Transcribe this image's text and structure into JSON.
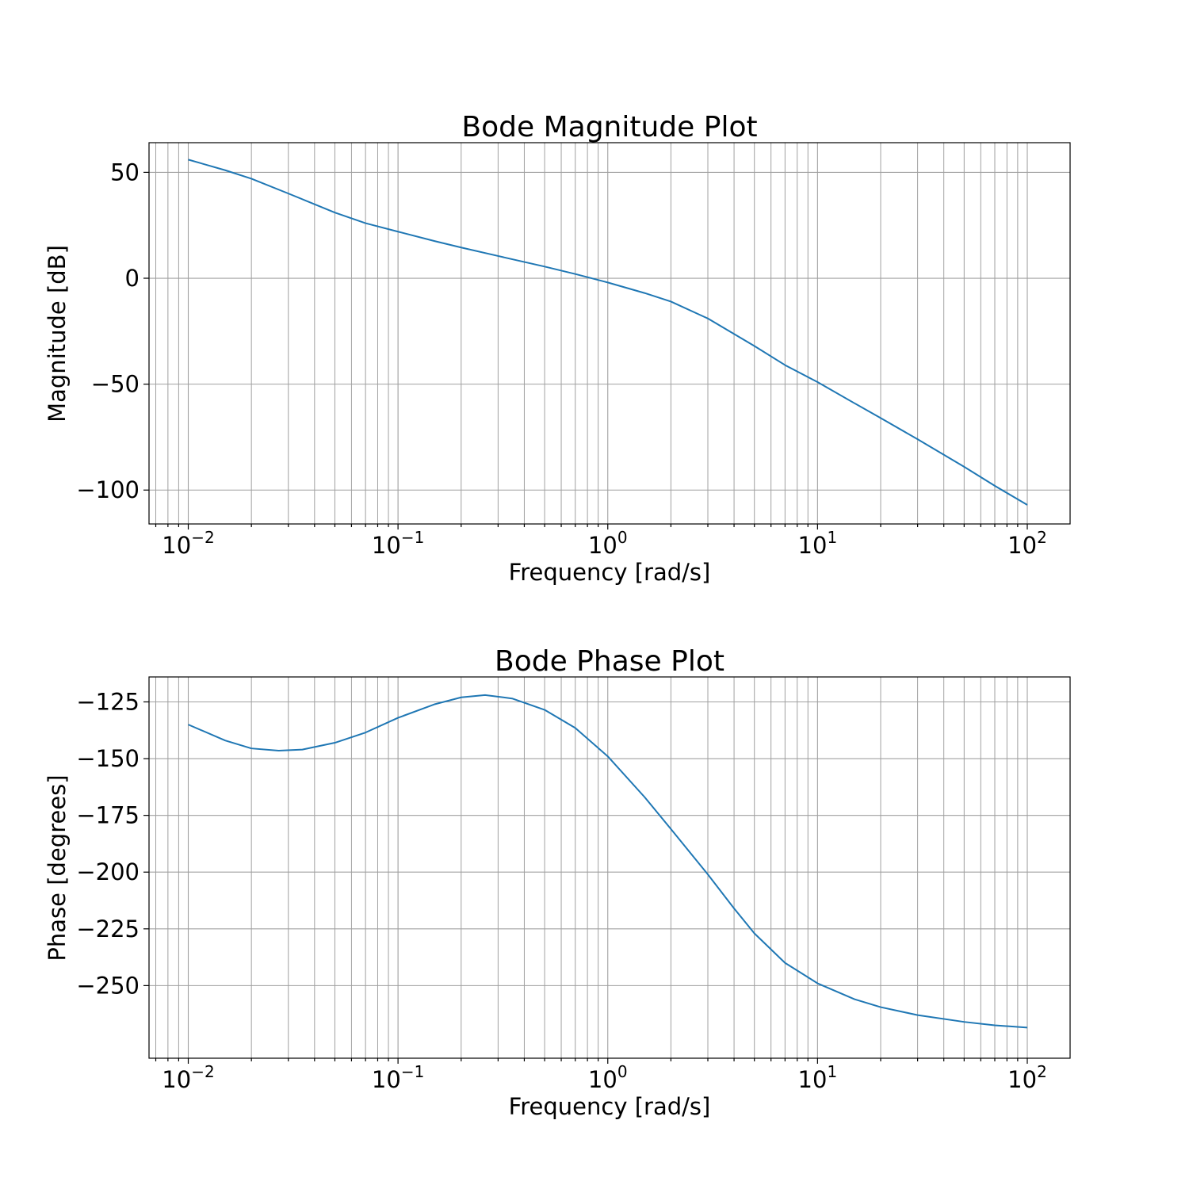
{
  "chart_data": [
    {
      "type": "line",
      "title": "Bode Magnitude Plot",
      "xlabel": "Frequency [rad/s]",
      "ylabel": "Magnitude [dB]",
      "xscale": "log",
      "xlim": [
        0.0065,
        160
      ],
      "ylim": [
        -116,
        64
      ],
      "grid": "both",
      "x_ticks": [
        0.01,
        0.1,
        1,
        10,
        100
      ],
      "x_tick_labels": [
        [
          "10",
          "−2"
        ],
        [
          "10",
          "−1"
        ],
        [
          "10",
          "0"
        ],
        [
          "10",
          "1"
        ],
        [
          "10",
          "2"
        ]
      ],
      "y_ticks": [
        50,
        0,
        -50,
        -100
      ],
      "y_tick_labels": [
        "50",
        "0",
        "−50",
        "−100"
      ],
      "series": [
        {
          "color": "#1f77b4",
          "x": [
            0.01,
            0.015,
            0.02,
            0.03,
            0.05,
            0.07,
            0.1,
            0.15,
            0.2,
            0.3,
            0.5,
            0.7,
            1,
            1.5,
            2,
            3,
            5,
            7,
            10,
            15,
            20,
            30,
            50,
            70,
            100
          ],
          "y": [
            56,
            51,
            47,
            40,
            31,
            26,
            22,
            17.5,
            14.5,
            10.5,
            5.5,
            2,
            -2,
            -7,
            -11,
            -19,
            -32,
            -41,
            -49,
            -59,
            -66,
            -76,
            -89,
            -98,
            -107
          ]
        }
      ]
    },
    {
      "type": "line",
      "title": "Bode Phase Plot",
      "xlabel": "Frequency [rad/s]",
      "ylabel": "Phase [degrees]",
      "xscale": "log",
      "xlim": [
        0.0065,
        160
      ],
      "ylim": [
        -282,
        -114
      ],
      "grid": "both",
      "x_ticks": [
        0.01,
        0.1,
        1,
        10,
        100
      ],
      "x_tick_labels": [
        [
          "10",
          "−2"
        ],
        [
          "10",
          "−1"
        ],
        [
          "10",
          "0"
        ],
        [
          "10",
          "1"
        ],
        [
          "10",
          "2"
        ]
      ],
      "y_ticks": [
        -125,
        -150,
        -175,
        -200,
        -225,
        -250
      ],
      "y_tick_labels": [
        "−125",
        "−150",
        "−175",
        "−200",
        "−225",
        "−250"
      ],
      "series": [
        {
          "color": "#1f77b4",
          "x": [
            0.01,
            0.015,
            0.02,
            0.027,
            0.035,
            0.05,
            0.07,
            0.1,
            0.15,
            0.2,
            0.26,
            0.35,
            0.5,
            0.7,
            1,
            1.5,
            2,
            3,
            4,
            5,
            7,
            10,
            15,
            20,
            30,
            50,
            70,
            100
          ],
          "y": [
            -135,
            -142,
            -145.5,
            -146.5,
            -146,
            -143,
            -138.5,
            -132,
            -126,
            -123,
            -122,
            -123.5,
            -128.5,
            -136.5,
            -149,
            -167,
            -181,
            -201,
            -216,
            -227,
            -240,
            -249,
            -256,
            -259.5,
            -263,
            -266,
            -267.5,
            -268.5
          ]
        }
      ]
    }
  ]
}
